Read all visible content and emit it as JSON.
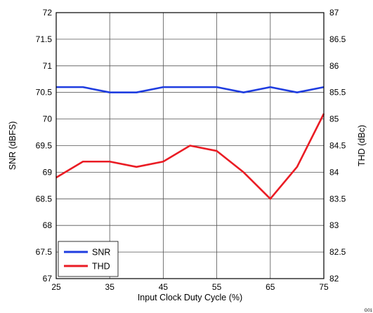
{
  "chart_data": {
    "type": "line",
    "title": "",
    "xlabel": "Input Clock Duty Cycle (%)",
    "ylabel": "SNR (dBFS)",
    "y2label": "THD (dBc)",
    "xlim": [
      25,
      75
    ],
    "ylim": [
      67,
      72
    ],
    "y2lim": [
      82,
      87
    ],
    "x_ticks": [
      "25",
      "35",
      "45",
      "55",
      "65",
      "75"
    ],
    "y_ticks": [
      "67",
      "67.5",
      "68",
      "68.5",
      "69",
      "69.5",
      "70",
      "70.5",
      "71",
      "71.5",
      "72"
    ],
    "y2_ticks": [
      "82",
      "82.5",
      "83",
      "83.5",
      "84",
      "84.5",
      "85",
      "85.5",
      "86",
      "86.5",
      "87"
    ],
    "grid": true,
    "legend_position": "bottom-left",
    "x": [
      25,
      30,
      35,
      40,
      45,
      50,
      55,
      60,
      65,
      70,
      75
    ],
    "series": [
      {
        "name": "SNR",
        "axis": "left",
        "color": "#1f3de0",
        "values": [
          70.6,
          70.6,
          70.5,
          70.5,
          70.6,
          70.6,
          70.6,
          70.5,
          70.6,
          70.5,
          70.6
        ]
      },
      {
        "name": "THD",
        "axis": "right",
        "color": "#ea1c24",
        "values": [
          83.9,
          84.2,
          84.2,
          84.1,
          84.2,
          84.5,
          84.4,
          84.0,
          83.5,
          84.1,
          85.1
        ]
      }
    ],
    "figure_code": "G01"
  }
}
